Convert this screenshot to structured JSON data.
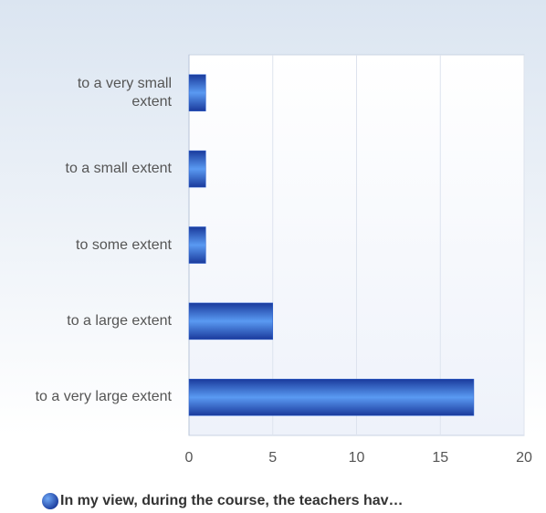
{
  "chart_data": {
    "type": "bar",
    "orientation": "horizontal",
    "categories": [
      "to a very small extent",
      "to a small extent",
      "to some extent",
      "to a large extent",
      "to a very large extent"
    ],
    "series": [
      {
        "name": "In my view, during the course, the teachers hav…",
        "color": "#2a5fd0",
        "values": [
          1,
          1,
          1,
          5,
          17
        ]
      }
    ],
    "xlim": [
      0,
      20
    ],
    "xticks": [
      0,
      5,
      10,
      15,
      20
    ],
    "grid": true,
    "legend": "bottom"
  }
}
